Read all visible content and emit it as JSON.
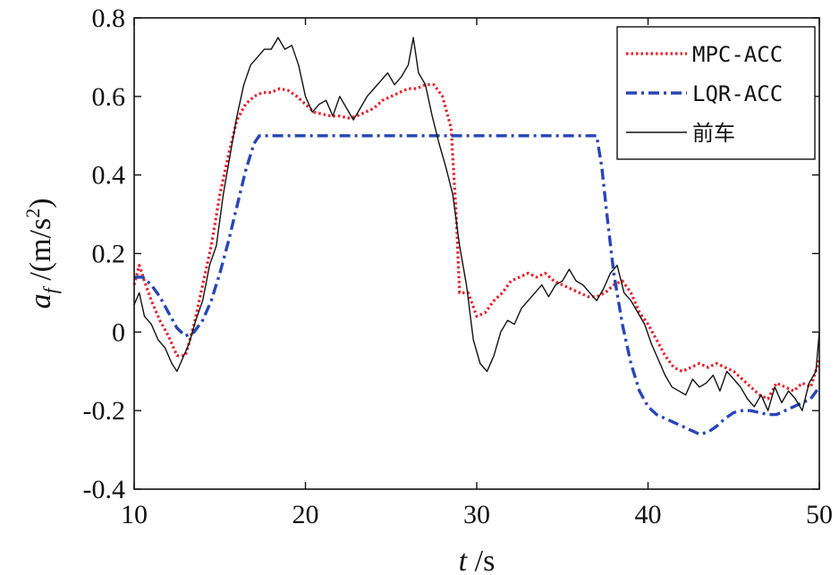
{
  "chart_data": {
    "type": "line",
    "xlabel": "t /s",
    "ylabel": "a_f /(m/s^2)",
    "xlim": [
      10,
      50
    ],
    "ylim": [
      -0.4,
      0.8
    ],
    "xticks": [
      "10",
      "20",
      "30",
      "40",
      "50"
    ],
    "yticks": [
      "-0.4",
      "-0.2",
      "0",
      "0.2",
      "0.4",
      "0.6",
      "0.8"
    ],
    "grid": false,
    "legend_position": "top-right",
    "series": [
      {
        "name": "MPC-ACC",
        "color": "#e8202a",
        "style": "dotted",
        "x": [
          10,
          10.3,
          10.6,
          11,
          11.5,
          12,
          12.5,
          13,
          13.5,
          14,
          14.5,
          15,
          15.5,
          16,
          16.5,
          17,
          17.5,
          18,
          18.5,
          19,
          19.5,
          20,
          20.5,
          21,
          21.5,
          22,
          22.5,
          23,
          23.5,
          24,
          24.5,
          25,
          25.5,
          26,
          26.5,
          27,
          27.5,
          28,
          28.5,
          28.8,
          29,
          29.5,
          30,
          30.5,
          31,
          31.5,
          32,
          32.5,
          33,
          33.5,
          34,
          34.5,
          35,
          35.5,
          36,
          36.5,
          37,
          37.5,
          38,
          38.5,
          39,
          39.5,
          40,
          40.5,
          41,
          41.5,
          42,
          42.5,
          43,
          43.5,
          44,
          44.5,
          45,
          45.5,
          46,
          46.5,
          47,
          47.5,
          48,
          48.5,
          49,
          49.5,
          50
        ],
        "values": [
          0.12,
          0.17,
          0.13,
          0.08,
          0.03,
          -0.01,
          -0.06,
          -0.06,
          0.02,
          0.12,
          0.22,
          0.35,
          0.45,
          0.54,
          0.58,
          0.6,
          0.61,
          0.61,
          0.62,
          0.615,
          0.6,
          0.58,
          0.56,
          0.555,
          0.55,
          0.55,
          0.545,
          0.55,
          0.56,
          0.57,
          0.59,
          0.6,
          0.61,
          0.62,
          0.62,
          0.63,
          0.63,
          0.6,
          0.52,
          0.3,
          0.1,
          0.1,
          0.04,
          0.05,
          0.08,
          0.1,
          0.13,
          0.14,
          0.15,
          0.14,
          0.15,
          0.13,
          0.12,
          0.11,
          0.1,
          0.09,
          0.09,
          0.1,
          0.12,
          0.13,
          0.1,
          0.05,
          0.02,
          -0.02,
          -0.06,
          -0.09,
          -0.1,
          -0.09,
          -0.08,
          -0.09,
          -0.08,
          -0.09,
          -0.1,
          -0.12,
          -0.14,
          -0.16,
          -0.17,
          -0.13,
          -0.14,
          -0.15,
          -0.13,
          -0.14,
          -0.07
        ]
      },
      {
        "name": "LQR-ACC",
        "color": "#2845b8",
        "style": "dashdot",
        "x": [
          10,
          10.5,
          11,
          11.5,
          12,
          12.5,
          13,
          13.5,
          14,
          14.5,
          15,
          15.5,
          16,
          16.5,
          17,
          17.3,
          20,
          25,
          30,
          35,
          37,
          37.3,
          37.6,
          38,
          38.5,
          39,
          39.5,
          40,
          40.5,
          41,
          41.5,
          42,
          42.5,
          43,
          43.5,
          44,
          44.5,
          45,
          45.5,
          46,
          46.5,
          47,
          47.5,
          48,
          48.5,
          49,
          49.5,
          50
        ],
        "values": [
          0.14,
          0.14,
          0.12,
          0.09,
          0.05,
          0.01,
          -0.01,
          0.0,
          0.03,
          0.08,
          0.15,
          0.23,
          0.32,
          0.41,
          0.48,
          0.5,
          0.5,
          0.5,
          0.5,
          0.5,
          0.5,
          0.42,
          0.3,
          0.15,
          0.02,
          -0.08,
          -0.15,
          -0.19,
          -0.21,
          -0.22,
          -0.23,
          -0.24,
          -0.25,
          -0.26,
          -0.255,
          -0.24,
          -0.22,
          -0.205,
          -0.2,
          -0.2,
          -0.205,
          -0.21,
          -0.21,
          -0.2,
          -0.19,
          -0.18,
          -0.17,
          -0.14
        ]
      },
      {
        "name": "前车",
        "color": "#111111",
        "style": "solid",
        "x": [
          10,
          10.3,
          10.6,
          11,
          11.4,
          11.8,
          12.2,
          12.5,
          12.8,
          13.2,
          13.6,
          14,
          14.4,
          14.8,
          15.2,
          15.6,
          16,
          16.4,
          16.8,
          17.2,
          17.6,
          18,
          18.4,
          18.8,
          19.2,
          19.6,
          20,
          20.4,
          20.8,
          21.2,
          21.6,
          22,
          22.4,
          22.8,
          23.2,
          23.6,
          24,
          24.4,
          24.8,
          25.2,
          25.6,
          26,
          26.3,
          26.6,
          27,
          27.4,
          27.8,
          28.2,
          28.6,
          29,
          29.4,
          29.8,
          30.2,
          30.6,
          31,
          31.4,
          31.8,
          32.2,
          32.6,
          33,
          33.4,
          33.8,
          34.2,
          34.6,
          35,
          35.4,
          35.8,
          36.2,
          36.6,
          37,
          37.4,
          37.8,
          38.2,
          38.6,
          39,
          39.4,
          39.8,
          40.2,
          40.6,
          41,
          41.4,
          41.8,
          42.2,
          42.6,
          43,
          43.4,
          43.8,
          44.2,
          44.6,
          45,
          45.4,
          45.8,
          46.2,
          46.6,
          47,
          47.4,
          47.8,
          48.2,
          48.6,
          49,
          49.4,
          49.8,
          50
        ],
        "values": [
          0.07,
          0.1,
          0.04,
          0.02,
          -0.02,
          -0.04,
          -0.08,
          -0.1,
          -0.07,
          -0.03,
          0.03,
          0.08,
          0.17,
          0.22,
          0.35,
          0.45,
          0.55,
          0.63,
          0.68,
          0.7,
          0.72,
          0.72,
          0.75,
          0.72,
          0.73,
          0.68,
          0.6,
          0.56,
          0.58,
          0.59,
          0.55,
          0.6,
          0.57,
          0.54,
          0.57,
          0.6,
          0.62,
          0.64,
          0.66,
          0.63,
          0.65,
          0.68,
          0.75,
          0.66,
          0.63,
          0.55,
          0.48,
          0.42,
          0.35,
          0.22,
          0.12,
          -0.02,
          -0.08,
          -0.1,
          -0.06,
          0.0,
          0.03,
          0.02,
          0.06,
          0.08,
          0.1,
          0.12,
          0.09,
          0.12,
          0.13,
          0.16,
          0.13,
          0.12,
          0.1,
          0.08,
          0.11,
          0.15,
          0.17,
          0.1,
          0.08,
          0.05,
          0.02,
          -0.03,
          -0.07,
          -0.11,
          -0.14,
          -0.15,
          -0.16,
          -0.12,
          -0.14,
          -0.13,
          -0.11,
          -0.15,
          -0.1,
          -0.12,
          -0.14,
          -0.17,
          -0.19,
          -0.16,
          -0.2,
          -0.14,
          -0.18,
          -0.15,
          -0.17,
          -0.2,
          -0.13,
          -0.1,
          0.0
        ]
      }
    ]
  }
}
